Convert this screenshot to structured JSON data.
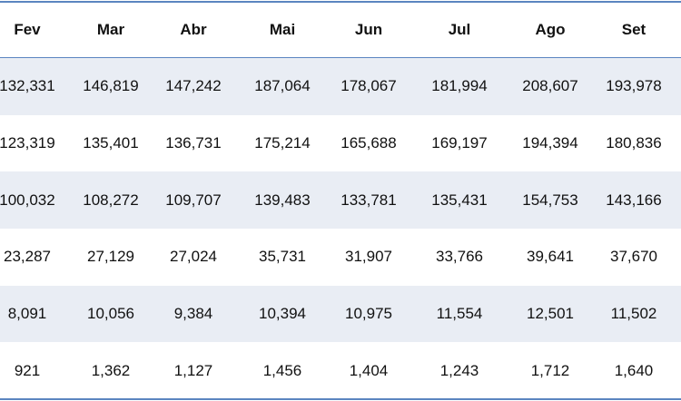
{
  "table": {
    "header": [
      "Fev",
      "Mar",
      "Abr",
      "Mai",
      "Jun",
      "Jul",
      "Ago",
      "Set"
    ],
    "rows": [
      [
        "132,331",
        "146,819",
        "147,242",
        "187,064",
        "178,067",
        "181,994",
        "208,607",
        "193,978"
      ],
      [
        "123,319",
        "135,401",
        "136,731",
        "175,214",
        "165,688",
        "169,197",
        "194,394",
        "180,836"
      ],
      [
        "100,032",
        "108,272",
        "109,707",
        "139,483",
        "133,781",
        "135,431",
        "154,753",
        "143,166"
      ],
      [
        "23,287",
        "27,129",
        "27,024",
        "35,731",
        "31,907",
        "33,766",
        "39,641",
        "37,670"
      ],
      [
        "8,091",
        "10,056",
        "9,384",
        "10,394",
        "10,975",
        "11,554",
        "12,501",
        "11,502"
      ],
      [
        "921",
        "1,362",
        "1,127",
        "1,456",
        "1,404",
        "1,243",
        "1,712",
        "1,640"
      ]
    ]
  }
}
